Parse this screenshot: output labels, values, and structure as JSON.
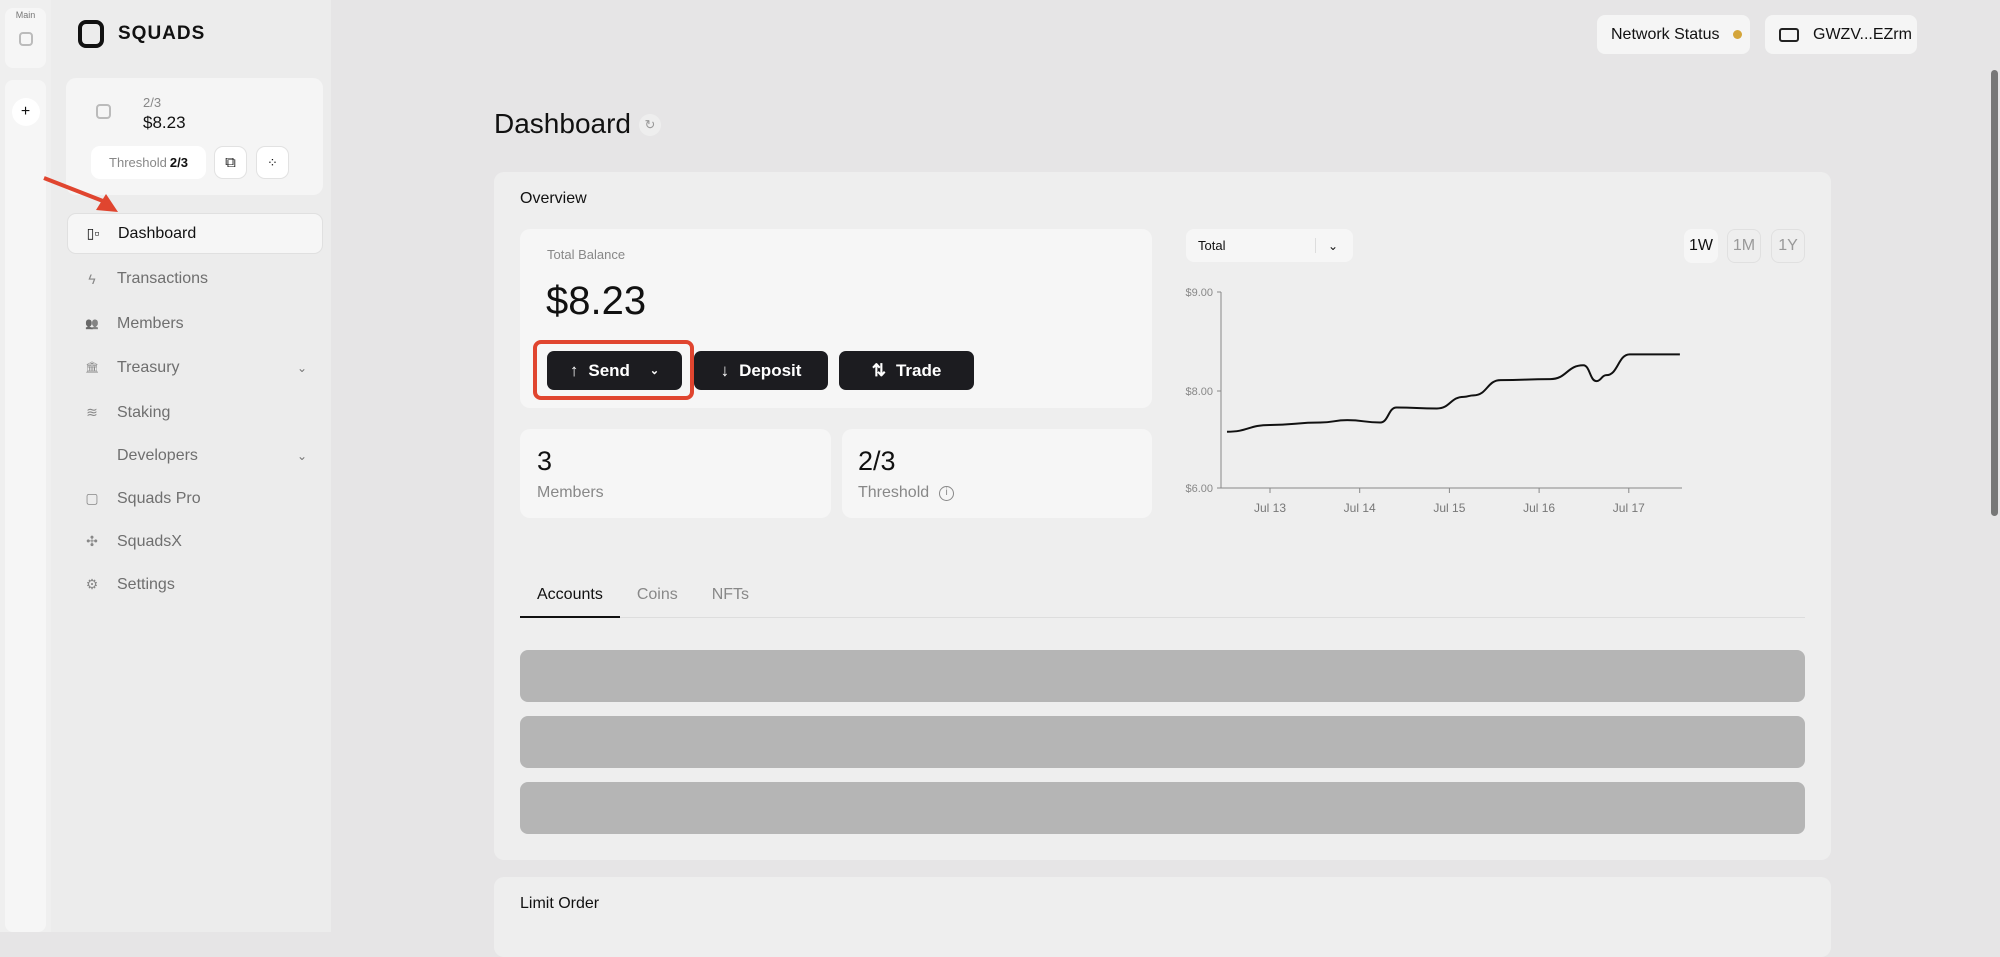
{
  "rail": {
    "main_label": "Main",
    "add_label": "+"
  },
  "brand": {
    "name": "SQUADS"
  },
  "account": {
    "threshold_small": "2/3",
    "balance": "$8.23",
    "threshold_label": "Threshold",
    "threshold_value": "2/3"
  },
  "nav": [
    {
      "label": "Dashboard",
      "icon": "dashboard-icon",
      "active": true
    },
    {
      "label": "Transactions",
      "icon": "lightning-icon"
    },
    {
      "label": "Members",
      "icon": "users-icon"
    },
    {
      "label": "Treasury",
      "icon": "bank-icon",
      "expandable": true
    },
    {
      "label": "Staking",
      "icon": "layers-icon"
    },
    {
      "label": "Developers",
      "icon": "code-icon",
      "expandable": true
    },
    {
      "label": "Squads Pro",
      "icon": "squads-icon"
    },
    {
      "label": "SquadsX",
      "icon": "puzzle-icon"
    },
    {
      "label": "Settings",
      "icon": "gear-icon"
    }
  ],
  "header": {
    "network_status": "Network Status",
    "network_status_color": "#d4a53a",
    "wallet": "GWZV...EZrm"
  },
  "page": {
    "title": "Dashboard"
  },
  "overview": {
    "title": "Overview",
    "balance_label": "Total Balance",
    "balance": "$8.23",
    "buttons": {
      "send": "Send",
      "deposit": "Deposit",
      "trade": "Trade"
    },
    "members_value": "3",
    "members_label": "Members",
    "threshold_value": "2/3",
    "threshold_label": "Threshold"
  },
  "chart_controls": {
    "select_value": "Total",
    "timeframes": [
      "1W",
      "1M",
      "1Y"
    ],
    "active_timeframe": "1W"
  },
  "chart_data": {
    "type": "line",
    "y_ticks": [
      "$6.00",
      "$8.00",
      "$9.00"
    ],
    "x_ticks": [
      "Jul 13",
      "Jul 14",
      "Jul 15",
      "Jul 16",
      "Jul 17"
    ],
    "grid": false,
    "x": [
      "Jul 12 12:30",
      "Jul 13 00:00",
      "Jul 13 13:30",
      "Jul 13 20:40",
      "Jul 14 05:30",
      "Jul 14 09:50",
      "Jul 14 20:40",
      "Jul 15 03:50",
      "Jul 15 06:30",
      "Jul 15 13:40",
      "Jul 16 03:00",
      "Jul 16 11:50",
      "Jul 16 15:20",
      "Jul 16 18:00",
      "Jul 17 00:15",
      "Jul 17 13:40"
    ],
    "values": [
      7.16,
      7.3,
      7.35,
      7.4,
      7.35,
      7.66,
      7.64,
      7.88,
      7.91,
      8.11,
      8.12,
      8.26,
      8.1,
      8.16,
      8.37,
      8.37
    ]
  },
  "tabs": [
    {
      "label": "Accounts",
      "active": true
    },
    {
      "label": "Coins"
    },
    {
      "label": "NFTs"
    }
  ],
  "limit_order": {
    "title": "Limit Order"
  },
  "annotation_color": "#e0452f"
}
